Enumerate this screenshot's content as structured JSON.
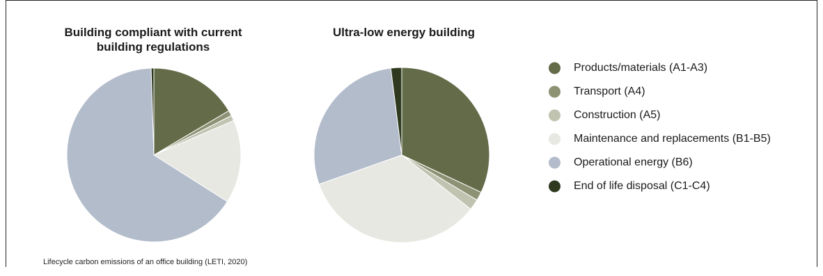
{
  "chart_data": [
    {
      "type": "pie",
      "title": "Building compliant with current building regulations",
      "categories": [
        "Products/materials (A1-A3)",
        "Transport (A4)",
        "Construction (A5)",
        "Maintenance and replacements (B1-B5)",
        "Operational energy (B6)",
        "End of life disposal (C1-C4)"
      ],
      "values": [
        16.5,
        1,
        1,
        15.5,
        65.5,
        0.5
      ],
      "unit": "%",
      "start": "top, clockwise"
    },
    {
      "type": "pie",
      "title": "Ultra-low energy building",
      "categories": [
        "Products/materials (A1-A3)",
        "Transport (A4)",
        "Construction (A5)",
        "Maintenance and replacements (B1-B5)",
        "Operational energy (B6)",
        "End of life disposal (C1-C4)"
      ],
      "values": [
        32,
        1.6,
        2,
        34,
        28.4,
        2
      ],
      "unit": "%",
      "start": "top, clockwise"
    }
  ],
  "legend": {
    "items": [
      {
        "label": "Products/materials (A1-A3)",
        "color": "#636b48"
      },
      {
        "label": "Transport (A4)",
        "color": "#8e9274"
      },
      {
        "label": "Construction (A5)",
        "color": "#c1c3b1"
      },
      {
        "label": "Maintenance and replacements (B1-B5)",
        "color": "#e8e8e2"
      },
      {
        "label": "Operational energy (B6)",
        "color": "#b3bccb"
      },
      {
        "label": "End of life disposal (C1-C4)",
        "color": "#2e3a1f"
      }
    ]
  },
  "caption": "Lifecycle carbon emissions of an office building (LETI, 2020)"
}
